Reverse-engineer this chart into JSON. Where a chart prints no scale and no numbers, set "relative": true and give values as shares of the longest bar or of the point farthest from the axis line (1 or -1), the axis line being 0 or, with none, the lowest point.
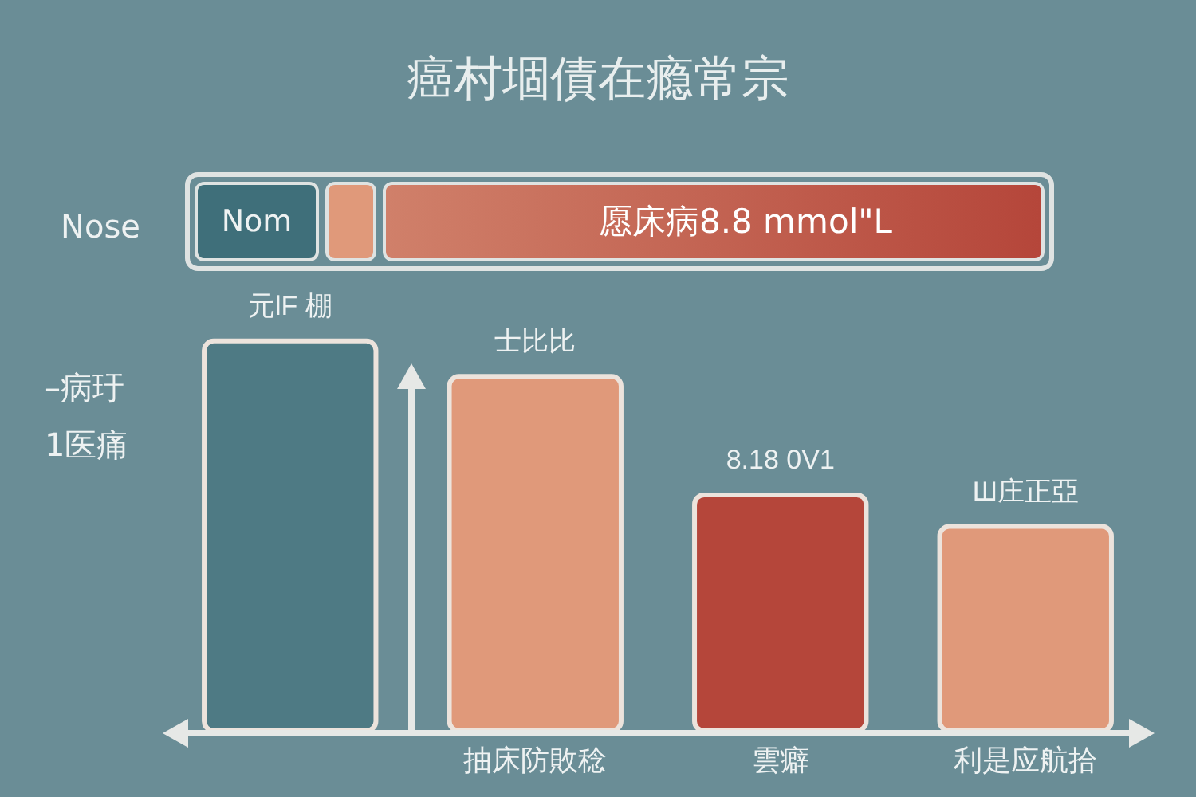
{
  "chart_data": {
    "type": "bar",
    "title": "癌村堌債在瘾常宗",
    "ylabel": "–病玗\n1医痛",
    "categories": [
      null,
      "抽床防敗稔",
      "雲癖",
      "利是应航拾"
    ],
    "values": [
      1,
      0.91,
      0.61,
      0.53
    ],
    "colors": [
      "#4e7a84",
      "#e0997a",
      "#b5463a",
      "#e0997a"
    ],
    "relative": true,
    "annotations": [
      "Nose",
      "Nom",
      "愿床病8.8 mmol\"L",
      {
        "text": "元lF 棚",
        "y": 1
      },
      {
        "text": "士比比",
        "x": "抽床防敗稔",
        "y": 0.91
      },
      {
        "text": "8.18 0V1",
        "x": "雲癖",
        "y": 0.61
      },
      {
        "text": "Ш庄正亞",
        "x": "利是应航拾",
        "y": 0.53
      }
    ]
  }
}
